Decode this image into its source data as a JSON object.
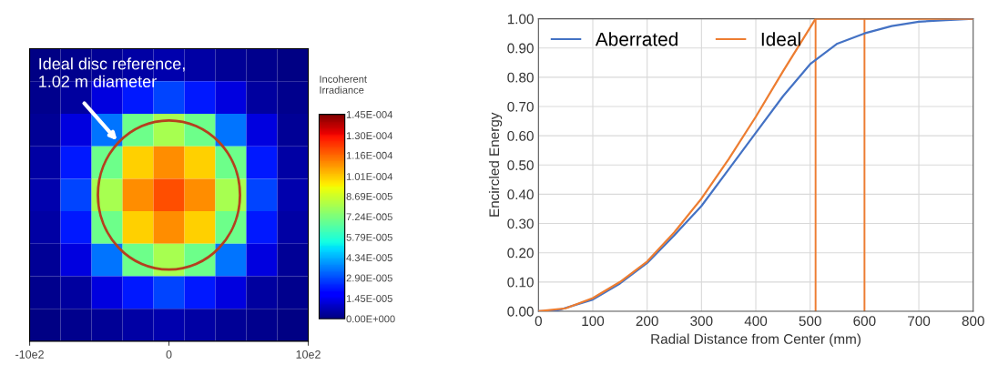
{
  "chart_data": [
    {
      "type": "heatmap",
      "clabel": "Incoherent\nIrradiance",
      "x": [
        -889,
        -667,
        -444,
        -222,
        0,
        222,
        444,
        667,
        889
      ],
      "y_categories": [
        null,
        null,
        null,
        null,
        null,
        null,
        null,
        null,
        null
      ],
      "xlim": [
        -1000,
        1000
      ],
      "xticks": [
        {
          "value": -1000,
          "label": "-10e2"
        },
        0,
        {
          "value": 1000,
          "label": "10e2"
        }
      ],
      "tick_labels": "x",
      "cells": [
        [
          1e-06,
          2e-06,
          3e-06,
          5e-06,
          6e-06,
          5e-06,
          3e-06,
          2e-06,
          1e-06
        ],
        [
          2e-06,
          4e-06,
          1.2e-05,
          2.2e-05,
          2.8e-05,
          2.2e-05,
          1.2e-05,
          4e-06,
          2e-06
        ],
        [
          3e-06,
          1.2e-05,
          3.5e-05,
          7e-05,
          8e-05,
          7e-05,
          3.5e-05,
          1.2e-05,
          3e-06
        ],
        [
          5e-06,
          2.2e-05,
          7e-05,
          0.0001,
          0.00011,
          0.0001,
          7e-05,
          2.2e-05,
          5e-06
        ],
        [
          6e-06,
          2.8e-05,
          8e-05,
          0.00011,
          0.00012,
          0.00011,
          8e-05,
          2.8e-05,
          6e-06
        ],
        [
          5e-06,
          2.2e-05,
          7e-05,
          0.0001,
          0.00011,
          0.0001,
          7e-05,
          2.2e-05,
          5e-06
        ],
        [
          3e-06,
          1.2e-05,
          3.5e-05,
          7e-05,
          8e-05,
          7e-05,
          3.5e-05,
          1.2e-05,
          3e-06
        ],
        [
          2e-06,
          4e-06,
          1.2e-05,
          2.2e-05,
          2.8e-05,
          2.2e-05,
          1.2e-05,
          4e-06,
          2e-06
        ],
        [
          1e-06,
          2e-06,
          3e-06,
          5e-06,
          6e-06,
          5e-06,
          3e-06,
          2e-06,
          1e-06
        ]
      ],
      "clim": [
        0,
        0.000145
      ],
      "cticks": [
        {
          "value": 0,
          "label": "0.00E+000"
        },
        {
          "value": 1.45e-05,
          "label": "1.45E-005"
        },
        {
          "value": 2.9e-05,
          "label": "2.90E-005"
        },
        {
          "value": 4.34e-05,
          "label": "4.34E-005"
        },
        {
          "value": 5.79e-05,
          "label": "5.79E-005"
        },
        {
          "value": 7.24e-05,
          "label": "7.24E-005"
        },
        {
          "value": 8.69e-05,
          "label": "8.69E-005"
        },
        {
          "value": 0.000101,
          "label": "1.01E-004"
        },
        {
          "value": 0.000116,
          "label": "1.16E-004"
        },
        {
          "value": 0.00013,
          "label": "1.30E-004"
        },
        {
          "value": 0.000145,
          "label": "1.45E-004"
        }
      ],
      "annotations": [
        "Ideal disc reference,\n1.02 m diameter"
      ]
    },
    {
      "type": "line",
      "xlabel": "Radial Distance from Center (mm)",
      "ylabel": "Encircled Energy",
      "xlim": [
        0,
        800
      ],
      "xticks": [
        0,
        100,
        200,
        300,
        400,
        500,
        600,
        700,
        800
      ],
      "ylim": [
        0,
        1
      ],
      "yticks": [
        {
          "value": 0,
          "label": "0.00"
        },
        {
          "value": 0.1,
          "label": "0.10"
        },
        {
          "value": 0.2,
          "label": "0.20"
        },
        {
          "value": 0.3,
          "label": "0.30"
        },
        {
          "value": 0.4,
          "label": "0.40"
        },
        {
          "value": 0.5,
          "label": "0.50"
        },
        {
          "value": 0.6,
          "label": "0.60"
        },
        {
          "value": 0.7,
          "label": "0.70"
        },
        {
          "value": 0.8,
          "label": "0.80"
        },
        {
          "value": 0.9,
          "label": "0.90"
        },
        {
          "value": 1,
          "label": "1.00"
        }
      ],
      "grid": true,
      "legend": "top left",
      "series": [
        {
          "name": "Aberrated",
          "color": "#4472c4",
          "x": [
            0,
            30,
            100,
            150,
            200,
            250,
            300,
            350,
            400,
            450,
            500,
            550,
            600,
            650,
            700,
            750,
            800
          ],
          "values": [
            0,
            0,
            0.04,
            0.095,
            0.165,
            0.26,
            0.36,
            0.485,
            0.61,
            0.735,
            0.845,
            0.915,
            0.95,
            0.975,
            0.99,
            0.995,
            1.0
          ]
        },
        {
          "name": "Ideal",
          "color": "#ed7d31",
          "x": [
            0,
            50,
            100,
            150,
            200,
            250,
            300,
            350,
            400,
            450,
            510,
            800
          ],
          "values": [
            0,
            0.01,
            0.045,
            0.1,
            0.17,
            0.27,
            0.385,
            0.52,
            0.665,
            0.82,
            1.0,
            1.0
          ]
        }
      ],
      "ref_lines": [
        {
          "axis": "x",
          "value": 510,
          "color": "#ed7d31"
        },
        {
          "axis": "x",
          "value": 600,
          "color": "#ed7d31"
        }
      ]
    }
  ]
}
